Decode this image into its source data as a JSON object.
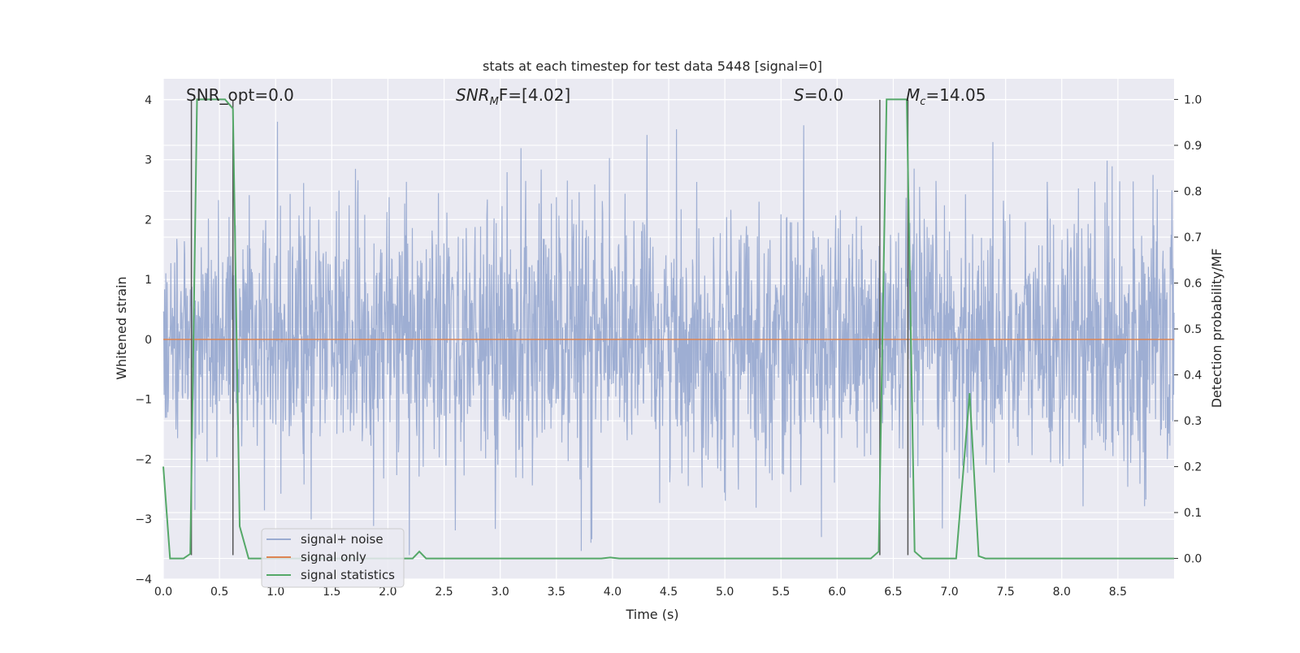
{
  "chart_data": {
    "type": "line",
    "title": "stats at each timestep for test data 5448 [signal=0]",
    "xlabel": "Time (s)",
    "ylabel_left": "Whitened strain",
    "ylabel_right": "Detection probability/MF",
    "xlim": [
      0,
      9.0
    ],
    "ylim_left": [
      -4,
      4.35
    ],
    "ylim_right": [
      -0.045,
      1.045
    ],
    "x_ticks": [
      0.0,
      0.5,
      1.0,
      1.5,
      2.0,
      2.5,
      3.0,
      3.5,
      4.0,
      4.5,
      5.0,
      5.5,
      6.0,
      6.5,
      7.0,
      7.5,
      8.0,
      8.5
    ],
    "x_tick_labels": [
      "0.0",
      "0.5",
      "1.0",
      "1.5",
      "2.0",
      "2.5",
      "3.0",
      "3.5",
      "4.0",
      "4.5",
      "5.0",
      "5.5",
      "6.0",
      "6.5",
      "7.0",
      "7.5",
      "8.0",
      "8.5"
    ],
    "y_left_ticks": [
      4,
      3,
      2,
      1,
      0,
      -1,
      -2,
      -3,
      -4
    ],
    "y_left_tick_labels": [
      "4",
      "3",
      "2",
      "1",
      "0",
      "−1",
      "−2",
      "−3",
      "−4"
    ],
    "y_right_ticks": [
      1.0,
      0.9,
      0.8,
      0.7,
      0.6,
      0.5,
      0.4,
      0.3,
      0.2,
      0.1,
      0.0
    ],
    "y_right_tick_labels": [
      "1.0",
      "0.9",
      "0.8",
      "0.7",
      "0.6",
      "0.5",
      "0.4",
      "0.3",
      "0.2",
      "0.1",
      "0.0"
    ],
    "grid": true,
    "legend_position": "lower-left",
    "annotations": {
      "snr_opt": "SNR_opt=0.0",
      "snr_mf_label": "SNR",
      "snr_mf_sub": "M",
      "snr_mf_rest": "F=[4.02]",
      "s_label": "S",
      "s_rest": "=0.0",
      "mc_label": "M",
      "mc_sub": "c",
      "mc_rest": "=14.05"
    },
    "series": [
      {
        "name": "signal+ noise",
        "color": "#9aabd1",
        "axis": "left",
        "description_values": "white-noise strain, approx range [-3.6, 4.0]"
      },
      {
        "name": "signal only",
        "color": "#dd8452",
        "axis": "left",
        "x": [
          0,
          9.0
        ],
        "y": [
          0,
          0
        ]
      },
      {
        "name": "signal statistics",
        "color": "#55a868",
        "axis": "right",
        "x": [
          0.0,
          0.06,
          0.18,
          0.24,
          0.3,
          0.55,
          0.62,
          0.68,
          0.76,
          2.1,
          2.22,
          2.28,
          2.34,
          3.9,
          3.98,
          4.06,
          6.3,
          6.37,
          6.44,
          6.62,
          6.69,
          6.76,
          7.06,
          7.18,
          7.26,
          7.32,
          9.0
        ],
        "y": [
          0.2,
          0.0,
          0.0,
          0.01,
          1.0,
          1.0,
          0.98,
          0.07,
          0.0,
          0.0,
          0.0,
          0.015,
          0.0,
          0.0,
          0.002,
          0.0,
          0.0,
          0.015,
          1.0,
          1.0,
          0.015,
          0.0,
          0.0,
          0.36,
          0.005,
          0.0,
          0.0
        ]
      }
    ],
    "markers": {
      "color": "#555555",
      "lines": [
        {
          "x": 0.25,
          "y_from": -3.6,
          "y_to": 4.0
        },
        {
          "x": 0.62,
          "y_from": -3.6,
          "y_to": 4.0
        },
        {
          "x": 6.38,
          "y_from": -3.6,
          "y_to": 4.0
        },
        {
          "x": 6.63,
          "y_from": -3.6,
          "y_to": 4.0
        }
      ]
    },
    "colors": {
      "plot_background": "#eaeaf2",
      "grid": "#ffffff"
    }
  }
}
